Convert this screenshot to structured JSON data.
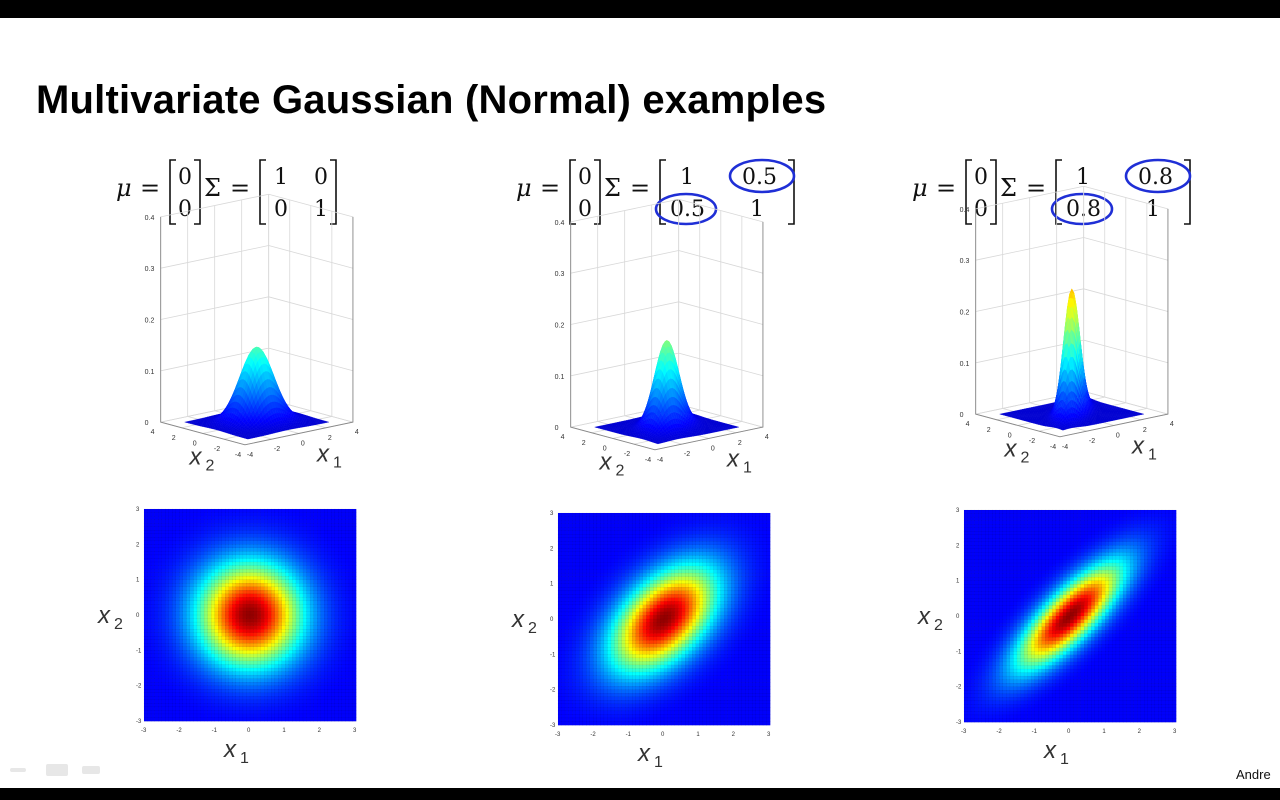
{
  "slide": {
    "title": "Multivariate Gaussian (Normal) examples",
    "credit": "Andre"
  },
  "panels": [
    {
      "mu": [
        "0",
        "0"
      ],
      "sigma": [
        [
          "1",
          "0"
        ],
        [
          "0",
          "1"
        ]
      ],
      "circled": false,
      "rho": 0
    },
    {
      "mu": [
        "0",
        "0"
      ],
      "sigma": [
        [
          "1",
          "0.5"
        ],
        [
          "0.5",
          "1"
        ]
      ],
      "circled": true,
      "rho": 0.5
    },
    {
      "mu": [
        "0",
        "0"
      ],
      "sigma": [
        [
          "1",
          "0.8"
        ],
        [
          "0.8",
          "1"
        ]
      ],
      "circled": true,
      "rho": 0.8
    }
  ],
  "symbols": {
    "mu": "μ",
    "sigma": "Σ",
    "eq": "="
  },
  "surface_axes": {
    "z_ticks": [
      "0",
      "0.1",
      "0.2",
      "0.3",
      "0.4"
    ],
    "x1_ticks": [
      "-4",
      "-2",
      "0",
      "2",
      "4"
    ],
    "x2_ticks": [
      "-4",
      "-2",
      "0",
      "2",
      "4"
    ],
    "x1_label": "x",
    "x1_sub": "1",
    "x2_label": "x",
    "x2_sub": "2"
  },
  "contour_axes": {
    "ticks": [
      "-3",
      "-2",
      "-1",
      "0",
      "1",
      "2",
      "3"
    ],
    "x_label": "x",
    "x_sub": "1",
    "y_label": "x",
    "y_sub": "2"
  },
  "colors": {
    "annotation_ink": "#1f2fd6",
    "colormap": "jet"
  }
}
